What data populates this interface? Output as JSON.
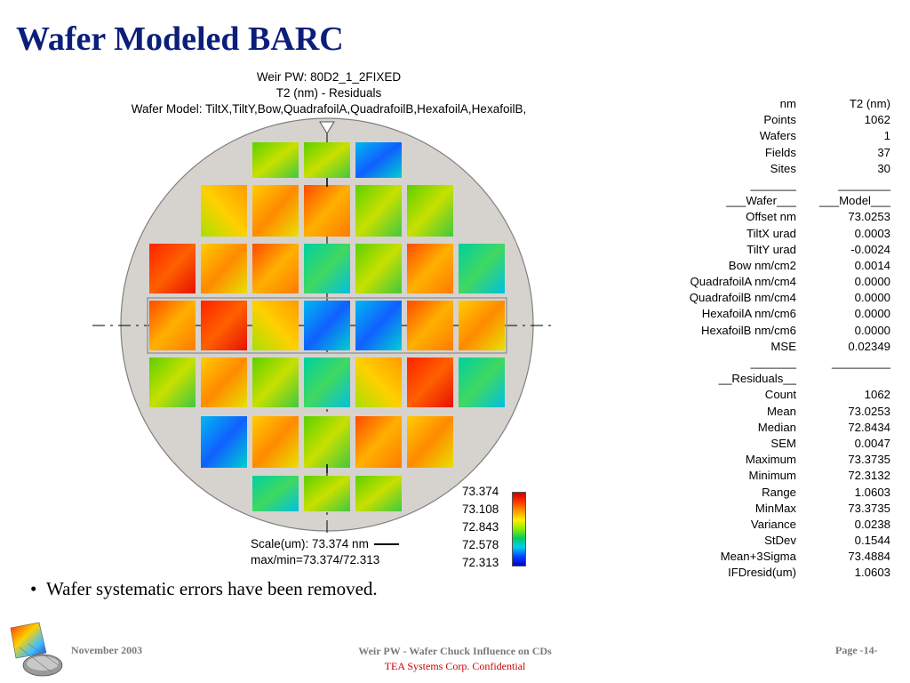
{
  "slide": {
    "title": "Wafer Modeled BARC"
  },
  "map": {
    "header_line1": "Weir PW: 80D2_1_2FIXED",
    "header_line2": "T2 (nm) - Residuals",
    "header_line3": "Wafer Model: TiltX,TiltY,Bow,QuadrafoilA,QuadrafoilB,HexafoilA,HexafoilB,",
    "scale_line1": "Scale(um): 73.374 nm",
    "scale_line2": "max/min=73.374/72.313",
    "colorbar_labels": [
      "73.374",
      "73.108",
      "72.843",
      "72.578",
      "72.313"
    ]
  },
  "stats": {
    "labels": [
      "nm",
      "Points",
      "Wafers",
      "Fields",
      "Sites",
      "_______",
      "___Wafer___",
      "Offset nm",
      "TiltX urad",
      "TiltY urad",
      "Bow nm/cm2",
      "QuadrafoilA nm/cm4",
      "QuadrafoilB nm/cm4",
      "HexafoilA nm/cm6",
      "HexafoilB nm/cm6",
      "MSE",
      "_______",
      "__Residuals__",
      "Count",
      "Mean",
      "Median",
      "SEM",
      "Maximum",
      "Minimum",
      "Range",
      "MinMax",
      "Variance",
      "StDev",
      "Mean+3Sigma",
      "IFDresid(um)"
    ],
    "values": [
      "T2 (nm)",
      "1062",
      "1",
      "37",
      "30",
      "________",
      "___Model___",
      "73.0253",
      "0.0003",
      "-0.0024",
      "0.0014",
      "0.0000",
      "0.0000",
      "0.0000",
      "0.0000",
      "0.02349",
      "_________",
      "",
      "1062",
      "73.0253",
      "72.8434",
      "0.0047",
      "73.3735",
      "72.3132",
      "1.0603",
      "73.3735",
      "0.0238",
      "0.1544",
      "73.4884",
      "1.0603"
    ]
  },
  "bullet": {
    "text": "Wafer systematic errors have been removed."
  },
  "footer": {
    "date": "November 2003",
    "center_line1": "Weir PW - Wafer Chuck Influence on CDs",
    "center_line2": "TEA Systems Corp. Confidential",
    "page": "Page -14-"
  },
  "colors": {
    "title": "#0b1e7a",
    "wafer": "#d6d3ce",
    "confidential": "#cc0000"
  }
}
